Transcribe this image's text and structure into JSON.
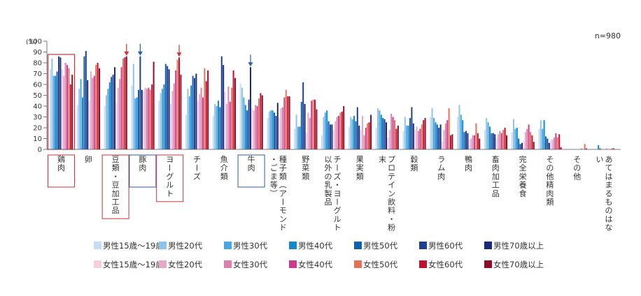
{
  "chart_data": {
    "type": "bar",
    "ylabel": "(%)",
    "ylim": [
      0,
      100
    ],
    "yticks": [
      0,
      10,
      20,
      30,
      40,
      50,
      60,
      70,
      80,
      90,
      100
    ],
    "sample_size": "n=980",
    "grid": false,
    "legend_position": "bottom",
    "categories": [
      {
        "label": "鶏肉",
        "highlight": "#d0313a"
      },
      {
        "label": "卵",
        "highlight": ""
      },
      {
        "label": "豆類・豆加工品",
        "highlight": "#d0313a",
        "arrow": "#d0313a"
      },
      {
        "label": "豚肉",
        "highlight": "#2a5ea8",
        "arrow": "#2a5ea8"
      },
      {
        "label": "ヨーグルト",
        "highlight": "#d0313a",
        "arrow": "#d0313a"
      },
      {
        "label": "チーズ",
        "highlight": ""
      },
      {
        "label": "魚介類",
        "highlight": ""
      },
      {
        "label": "牛肉",
        "highlight": "#2a5ea8",
        "arrow": "#2a5ea8"
      },
      {
        "label": "種子類（アーモンド・ごま等）",
        "highlight": ""
      },
      {
        "label": "野菜類",
        "highlight": ""
      },
      {
        "label": "チーズ・ヨーグルト以外の乳製品",
        "highlight": ""
      },
      {
        "label": "果実類",
        "highlight": ""
      },
      {
        "label": "プロテイン飲料・粉末",
        "highlight": ""
      },
      {
        "label": "穀類",
        "highlight": ""
      },
      {
        "label": "ラム肉",
        "highlight": ""
      },
      {
        "label": "鴨肉",
        "highlight": ""
      },
      {
        "label": "畜肉加工品",
        "highlight": ""
      },
      {
        "label": "完全栄養食",
        "highlight": ""
      },
      {
        "label": "その他精肉類",
        "highlight": ""
      },
      {
        "label": "その他",
        "highlight": ""
      },
      {
        "label": "あてはまるものはない",
        "highlight": ""
      }
    ],
    "series": [
      {
        "name": "男性15歳～19歳",
        "color": "#c5def4",
        "values": [
          74,
          41,
          40,
          59,
          45,
          32,
          31,
          61,
          29,
          19,
          13,
          21,
          20,
          17,
          30,
          30,
          18,
          16,
          19,
          0,
          0
        ]
      },
      {
        "name": "男性20代",
        "color": "#8cc4ee",
        "values": [
          84,
          56,
          50,
          79,
          52,
          56,
          42,
          57,
          35,
          32,
          30,
          30,
          38,
          30,
          38,
          41,
          29,
          28,
          27,
          0,
          0
        ]
      },
      {
        "name": "男性30代",
        "color": "#4aa6e3",
        "values": [
          68,
          65,
          56,
          47,
          56,
          49,
          40,
          48,
          36,
          21,
          34,
          28,
          36,
          22,
          29,
          32,
          25,
          19,
          19,
          0,
          0
        ]
      },
      {
        "name": "男性40代",
        "color": "#1487cf",
        "values": [
          68,
          48,
          62,
          48,
          60,
          59,
          45,
          41,
          36,
          21,
          36,
          31,
          32,
          22,
          25,
          27,
          21,
          20,
          27,
          0,
          4
        ]
      },
      {
        "name": "男性50代",
        "color": "#1160aa",
        "values": [
          72,
          86,
          67,
          55,
          79,
          68,
          39,
          36,
          34,
          44,
          26,
          26,
          29,
          29,
          23,
          16,
          15,
          10,
          12,
          0,
          1
        ]
      },
      {
        "name": "男性60代",
        "color": "#1e3f93",
        "values": [
          86,
          91,
          69,
          86,
          77,
          66,
          86,
          46,
          31,
          62,
          23,
          39,
          28,
          39,
          20,
          17,
          15,
          5,
          10,
          0,
          0
        ]
      },
      {
        "name": "男性70歳以上",
        "color": "#182a78",
        "values": [
          85,
          64,
          76,
          55,
          74,
          70,
          78,
          76,
          43,
          42,
          23,
          22,
          25,
          24,
          23,
          15,
          14,
          6,
          6,
          0,
          0
        ]
      },
      {
        "name": "女性15歳～19歳",
        "color": "#f4cfe0",
        "values": [
          74,
          45,
          43,
          54,
          42,
          45,
          53,
          38,
          29,
          15,
          18,
          18,
          11,
          18,
          7,
          9,
          10,
          8,
          9,
          0,
          0
        ]
      },
      {
        "name": "女性20代",
        "color": "#e6a8c8",
        "values": [
          68,
          72,
          57,
          57,
          54,
          51,
          42,
          36,
          38,
          34,
          26,
          31,
          18,
          21,
          18,
          10,
          14,
          16,
          9,
          0,
          1
        ]
      },
      {
        "name": "女性30代",
        "color": "#db7fae",
        "values": [
          80,
          66,
          65,
          56,
          61,
          57,
          58,
          41,
          39,
          29,
          30,
          13,
          33,
          17,
          24,
          13,
          17,
          19,
          11,
          1,
          0
        ]
      },
      {
        "name": "女性40代",
        "color": "#d13a8c",
        "values": [
          78,
          68,
          76,
          57,
          73,
          48,
          44,
          40,
          48,
          45,
          31,
          20,
          30,
          19,
          27,
          13,
          15,
          23,
          15,
          0,
          0
        ]
      },
      {
        "name": "女性50代",
        "color": "#e2725a",
        "values": [
          75,
          78,
          84,
          55,
          83,
          75,
          57,
          47,
          55,
          46,
          34,
          24,
          27,
          23,
          38,
          24,
          18,
          16,
          11,
          5,
          1
        ]
      },
      {
        "name": "女性60代",
        "color": "#c4102f",
        "values": [
          60,
          80,
          85,
          60,
          85,
          63,
          73,
          52,
          49,
          46,
          35,
          25,
          19,
          27,
          13,
          15,
          20,
          13,
          14,
          1,
          1
        ]
      },
      {
        "name": "女性70歳以上",
        "color": "#8c0e2a",
        "values": [
          69,
          75,
          86,
          81,
          69,
          73,
          66,
          50,
          49,
          37,
          40,
          32,
          22,
          29,
          14,
          10,
          13,
          7,
          2,
          0,
          0
        ]
      }
    ]
  }
}
